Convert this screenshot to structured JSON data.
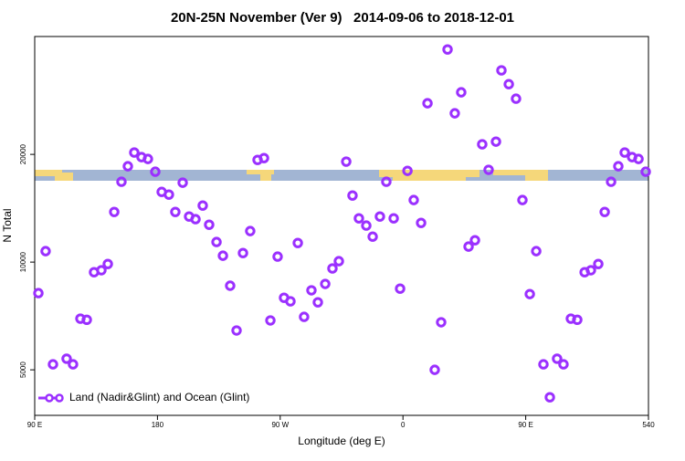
{
  "chart_data": {
    "type": "scatter",
    "title": "20N-25N November (Ver 9)   2014-09-06 to 2018-12-01",
    "x_label": "Longitude (deg E)",
    "y_label": "N Total",
    "xlim": [
      90,
      540
    ],
    "xticks": [
      {
        "value": 90,
        "label": "90 E"
      },
      180,
      {
        "value": 270,
        "label": "90 W"
      },
      {
        "value": 360,
        "label": "0"
      },
      {
        "value": 450,
        "label": "90 E"
      },
      540
    ],
    "ylim": [
      3730,
      42700
    ],
    "yticks": [
      5000,
      10000,
      20000
    ],
    "log_y": true,
    "legend": "bottom-left",
    "series": [
      {
        "name": "Land (Nadir&Glint) and Ocean (Glint)",
        "color": "#9b30ff",
        "x": [
          92.7,
          98,
          103.4,
          113.4,
          118.1,
          123.5,
          128.2,
          133.5,
          138.9,
          143.6,
          148.3,
          153.6,
          158.3,
          163,
          168.3,
          173,
          178.4,
          183.1,
          188.4,
          193.1,
          198.5,
          203.2,
          207.9,
          213.2,
          217.9,
          223.3,
          228,
          233.3,
          238,
          242.7,
          248,
          253.4,
          258.1,
          262.8,
          268.1,
          272.8,
          277.5,
          282.9,
          287.5,
          292.9,
          297.6,
          303,
          308.3,
          313,
          318.4,
          323,
          327.7,
          333.1,
          337.8,
          343.1,
          347.8,
          353.2,
          357.9,
          363.3,
          367.9,
          373.3,
          378,
          383.3,
          388,
          392.7,
          398,
          402.7,
          408.1,
          412.8,
          418.1,
          422.8,
          428.2,
          432.2,
          437.6,
          442.9,
          447.6,
          453,
          457.7,
          463,
          467.7,
          473,
          477.7,
          483.1,
          487.8,
          493.2,
          497.8,
          503.2,
          507.9,
          512.6,
          517.9,
          522.6,
          528,
          532.7,
          538
        ],
        "values": [
          8190,
          10730,
          5180,
          5370,
          5180,
          6950,
          6900,
          9370,
          9490,
          9880,
          13810,
          16770,
          18530,
          20240,
          19650,
          19420,
          17890,
          15710,
          15440,
          13810,
          16670,
          13410,
          13180,
          14390,
          12720,
          11380,
          10420,
          8590,
          6440,
          10600,
          12210,
          19300,
          19530,
          6870,
          10360,
          7950,
          7770,
          11310,
          7030,
          8340,
          7720,
          8690,
          9600,
          10060,
          19090,
          15350,
          13250,
          12650,
          11780,
          13410,
          16770,
          13250,
          8430,
          17990,
          14910,
          12870,
          27790,
          5000,
          6790,
          39290,
          26050,
          29820,
          11050,
          11510,
          21340,
          18110,
          21710,
          34340,
          31420,
          28620,
          14910,
          8140,
          10730,
          5180,
          4190,
          5370,
          5180,
          6950,
          6900,
          9370,
          9490,
          9880,
          13810,
          16770,
          18530,
          20240,
          19650,
          19420,
          17890
        ]
      }
    ]
  }
}
